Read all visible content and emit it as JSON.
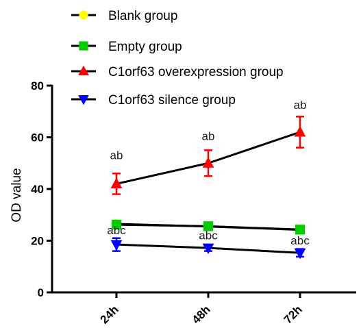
{
  "chart_data": {
    "type": "line",
    "categories": [
      "24h",
      "48h",
      "72h"
    ],
    "ylabel": "OD value",
    "xlabel": "",
    "ylim": [
      0,
      80
    ],
    "yticks": [
      0,
      20,
      40,
      60,
      80
    ],
    "grid": false,
    "legend_position": "top-center",
    "series": [
      {
        "name": "Blank group",
        "marker": "circle",
        "color": "#ffff00",
        "values": [
          26.5,
          25.5,
          24.2
        ],
        "errors": [
          0.8,
          0.8,
          0.8
        ]
      },
      {
        "name": "Empty group",
        "marker": "square",
        "color": "#00cc00",
        "values": [
          26.2,
          25.6,
          24.3
        ],
        "errors": [
          0.8,
          0.8,
          0.8
        ]
      },
      {
        "name": "C1orf63 overexpression group",
        "marker": "triangle-up",
        "color": "#ff0000",
        "values": [
          42,
          50,
          62
        ],
        "errors": [
          4,
          5,
          6
        ]
      },
      {
        "name": "C1orf63 silence group",
        "marker": "triangle-down",
        "color": "#0000ff",
        "values": [
          18.5,
          17.2,
          15.3
        ],
        "errors": [
          2.5,
          1.2,
          1.5
        ]
      }
    ],
    "annotations": [
      {
        "category": "24h",
        "text": "ab",
        "y": 51.5
      },
      {
        "category": "48h",
        "text": "ab",
        "y": 59
      },
      {
        "category": "72h",
        "text": "ab",
        "y": 71
      },
      {
        "category": "24h",
        "text": "abc",
        "y": 22.5
      },
      {
        "category": "48h",
        "text": "abc",
        "y": 20.5
      },
      {
        "category": "72h",
        "text": "abc",
        "y": 18.5
      }
    ]
  }
}
